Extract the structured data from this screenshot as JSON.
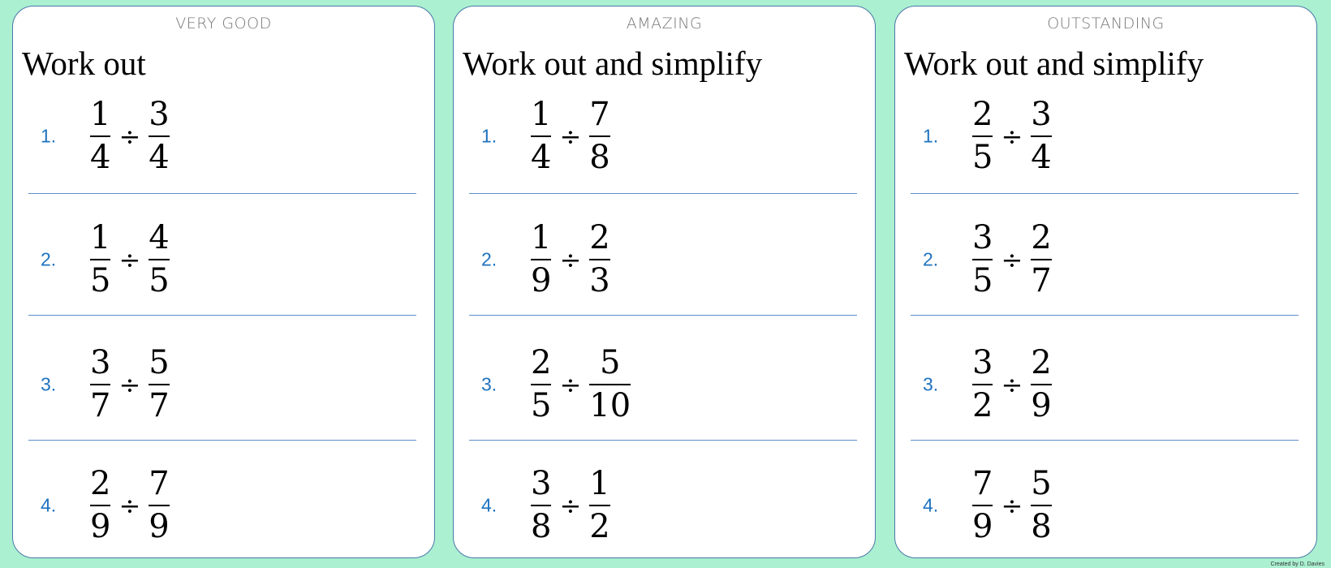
{
  "cards": [
    {
      "level": "VERY GOOD",
      "instruction": "Work out",
      "questions": [
        {
          "n": "1.",
          "a": [
            "1",
            "4"
          ],
          "op": "÷",
          "b": [
            "3",
            "4"
          ]
        },
        {
          "n": "2.",
          "a": [
            "1",
            "5"
          ],
          "op": "÷",
          "b": [
            "4",
            "5"
          ]
        },
        {
          "n": "3.",
          "a": [
            "3",
            "7"
          ],
          "op": "÷",
          "b": [
            "5",
            "7"
          ]
        },
        {
          "n": "4.",
          "a": [
            "2",
            "9"
          ],
          "op": "÷",
          "b": [
            "7",
            "9"
          ]
        }
      ]
    },
    {
      "level": "AMAZING",
      "instruction": "Work out and simplify",
      "questions": [
        {
          "n": "1.",
          "a": [
            "1",
            "4"
          ],
          "op": "÷",
          "b": [
            "7",
            "8"
          ]
        },
        {
          "n": "2.",
          "a": [
            "1",
            "9"
          ],
          "op": "÷",
          "b": [
            "2",
            "3"
          ]
        },
        {
          "n": "3.",
          "a": [
            "2",
            "5"
          ],
          "op": "÷",
          "b": [
            "5",
            "10"
          ]
        },
        {
          "n": "4.",
          "a": [
            "3",
            "8"
          ],
          "op": "÷",
          "b": [
            "1",
            "2"
          ]
        }
      ]
    },
    {
      "level": "OUTSTANDING",
      "instruction": "Work out and simplify",
      "questions": [
        {
          "n": "1.",
          "a": [
            "2",
            "5"
          ],
          "op": "÷",
          "b": [
            "3",
            "4"
          ]
        },
        {
          "n": "2.",
          "a": [
            "3",
            "5"
          ],
          "op": "÷",
          "b": [
            "2",
            "7"
          ]
        },
        {
          "n": "3.",
          "a": [
            "3",
            "2"
          ],
          "op": "÷",
          "b": [
            "2",
            "9"
          ]
        },
        {
          "n": "4.",
          "a": [
            "7",
            "9"
          ],
          "op": "÷",
          "b": [
            "5",
            "8"
          ]
        }
      ]
    }
  ],
  "credit": "Created by D. Davies",
  "colors": {
    "background": "#aaf0d1",
    "question_number": "#1f73c0",
    "rule": "#5b8fc7",
    "card_border": "#4a78a8"
  }
}
